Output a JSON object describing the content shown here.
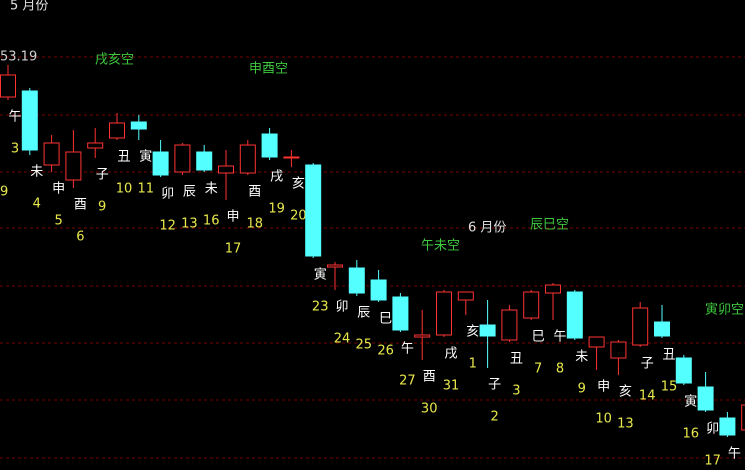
{
  "chart_data": {
    "type": "candlestick",
    "ylim": [
      45.09,
      54.49
    ],
    "colors": {
      "up": "#ff3232",
      "down": "#54ffff"
    },
    "open": [
      52.55,
      52.67,
      51.19,
      50.89,
      51.53,
      51.73,
      52.05,
      51.45,
      51.05,
      51.45,
      51.03,
      51.03,
      51.81,
      51.33,
      51.19,
      49.15,
      49.13,
      48.89,
      48.55,
      47.75,
      47.79,
      48.49,
      47.99,
      47.69,
      48.13,
      48.63,
      48.65,
      47.55,
      47.33,
      47.59,
      48.05,
      47.33,
      46.75,
      46.13,
      45.89
    ],
    "high": [
      53.19,
      52.73,
      51.79,
      51.89,
      51.93,
      52.23,
      52.19,
      51.69,
      51.63,
      51.59,
      51.49,
      51.69,
      51.93,
      51.49,
      51.23,
      49.25,
      49.29,
      49.09,
      48.63,
      48.29,
      48.69,
      48.65,
      48.49,
      48.39,
      48.69,
      48.83,
      48.69,
      47.75,
      47.69,
      48.45,
      48.39,
      47.39,
      47.05,
      46.25,
      46.49
    ],
    "low": [
      52.49,
      51.39,
      51.05,
      50.73,
      51.33,
      51.69,
      51.69,
      50.95,
      50.99,
      51.05,
      50.49,
      50.99,
      51.29,
      51.15,
      49.33,
      48.69,
      48.57,
      48.45,
      47.85,
      47.29,
      47.75,
      48.19,
      47.13,
      47.65,
      48.09,
      48.09,
      47.69,
      47.09,
      46.99,
      47.55,
      47.73,
      46.79,
      46.25,
      45.75,
      45.85
    ],
    "close": [
      52.99,
      51.49,
      51.63,
      51.45,
      51.63,
      52.03,
      51.91,
      50.99,
      51.59,
      51.09,
      51.17,
      51.59,
      51.35,
      51.35,
      49.37,
      49.19,
      48.63,
      48.49,
      47.89,
      47.79,
      48.65,
      48.65,
      47.77,
      48.29,
      48.65,
      48.79,
      47.73,
      47.75,
      47.65,
      48.33,
      47.77,
      46.83,
      46.29,
      45.79,
      46.39
    ],
    "branch_labels": [
      "午",
      "未",
      "申",
      "酉",
      "子",
      "丑",
      "寅",
      "卯",
      "辰",
      "未",
      "申",
      "酉",
      "戌",
      "亥",
      "寅",
      "卯",
      "辰",
      "巳",
      "午",
      "酉",
      "戌",
      "亥",
      "子",
      "丑",
      "巳",
      "午",
      "未",
      "申",
      "亥",
      "子",
      "丑",
      "寅",
      "卯",
      "午",
      null
    ],
    "day_labels": [
      "3",
      "4",
      "5",
      "6",
      "9",
      "10",
      "11",
      "12",
      "13",
      "16",
      "17",
      "18",
      "19",
      "20",
      "23",
      "24",
      "25",
      "26",
      "27",
      "30",
      "31",
      "1",
      "2",
      "3",
      "7",
      "8",
      "9",
      "10",
      "13",
      "14",
      "15",
      "16",
      "17",
      null,
      null
    ],
    "annotations": [
      "5 月份",
      "戌亥空",
      "申酉空",
      "午未空",
      "6 月份",
      "辰巳空",
      "寅卯空",
      "9"
    ]
  }
}
